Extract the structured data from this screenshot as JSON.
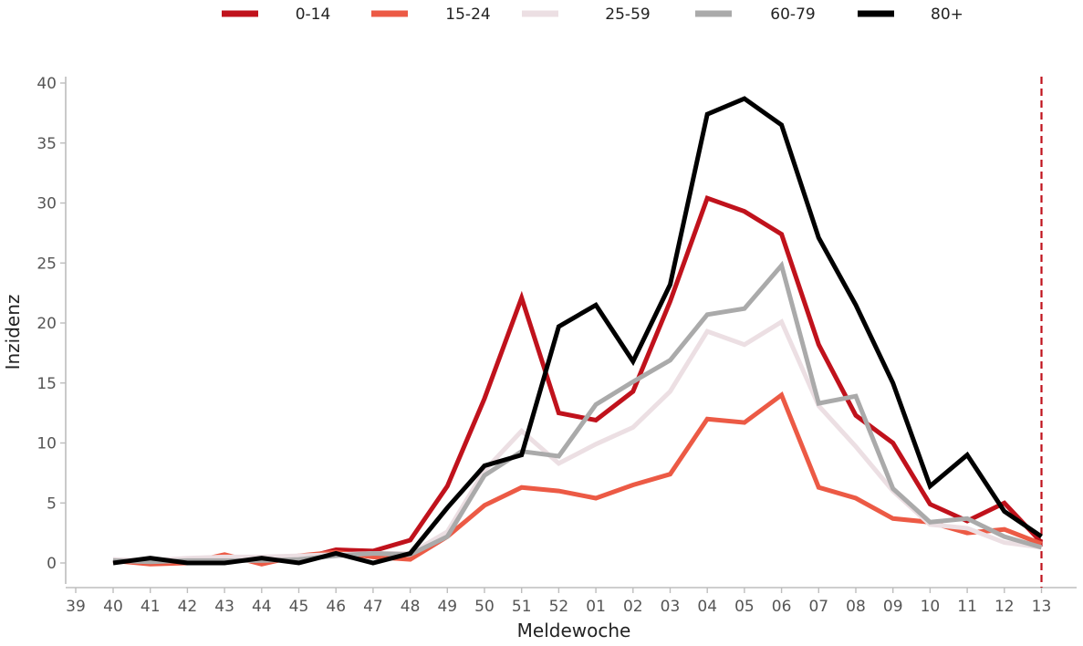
{
  "chart_data": {
    "type": "line",
    "xlabel": "Meldewoche",
    "ylabel": "Inzidenz",
    "ylim": [
      0,
      40
    ],
    "yticks": [
      0,
      5,
      10,
      15,
      20,
      25,
      30,
      35,
      40
    ],
    "x_extra_leading_tick": "39",
    "categories": [
      "40",
      "41",
      "42",
      "43",
      "44",
      "45",
      "46",
      "47",
      "48",
      "49",
      "50",
      "51",
      "52",
      "01",
      "02",
      "03",
      "04",
      "05",
      "06",
      "07",
      "08",
      "09",
      "10",
      "11",
      "12",
      "13"
    ],
    "reference_line": {
      "category": "13",
      "style": "dashed",
      "color": "#c0121c"
    },
    "legend_position": "top",
    "series": [
      {
        "name": "0-14",
        "color": "#c0121c",
        "values": [
          0.2,
          0.2,
          0.2,
          0.3,
          0.3,
          0.3,
          1.1,
          1.0,
          1.9,
          6.4,
          13.7,
          22.1,
          12.5,
          11.9,
          14.3,
          21.8,
          30.4,
          29.3,
          27.4,
          18.2,
          12.3,
          10.0,
          4.9,
          3.5,
          5.0,
          1.7
        ]
      },
      {
        "name": "15-24",
        "color": "#ec5a45",
        "values": [
          0.2,
          -0.1,
          0.0,
          0.7,
          -0.1,
          0.6,
          0.9,
          0.5,
          0.3,
          2.2,
          4.8,
          6.3,
          6.0,
          5.4,
          6.5,
          7.4,
          12.0,
          11.7,
          14.0,
          6.3,
          5.4,
          3.7,
          3.4,
          2.5,
          2.8,
          1.6
        ]
      },
      {
        "name": "25-59",
        "color": "#ecdfe3",
        "values": [
          0.3,
          0.2,
          0.4,
          0.5,
          0.5,
          0.6,
          0.7,
          0.8,
          0.8,
          2.6,
          7.7,
          11.0,
          8.3,
          9.9,
          11.3,
          14.3,
          19.3,
          18.2,
          20.1,
          13.1,
          9.7,
          6.0,
          3.2,
          2.9,
          1.7,
          1.3
        ]
      },
      {
        "name": "60-79",
        "color": "#aaaaaa",
        "values": [
          0.2,
          0.1,
          0.2,
          0.2,
          0.2,
          0.3,
          0.6,
          0.8,
          0.7,
          2.2,
          7.3,
          9.3,
          8.9,
          13.2,
          15.1,
          16.9,
          20.7,
          21.2,
          24.8,
          13.3,
          13.9,
          6.2,
          3.4,
          3.7,
          2.2,
          1.3
        ]
      },
      {
        "name": "80+",
        "color": "#000000",
        "values": [
          0.0,
          0.4,
          0.0,
          0.0,
          0.4,
          0.0,
          0.8,
          0.0,
          0.8,
          4.6,
          8.1,
          9.0,
          19.7,
          21.5,
          16.8,
          23.2,
          37.4,
          38.7,
          36.5,
          27.1,
          21.5,
          15.0,
          6.4,
          9.0,
          4.3,
          2.2
        ]
      }
    ]
  }
}
